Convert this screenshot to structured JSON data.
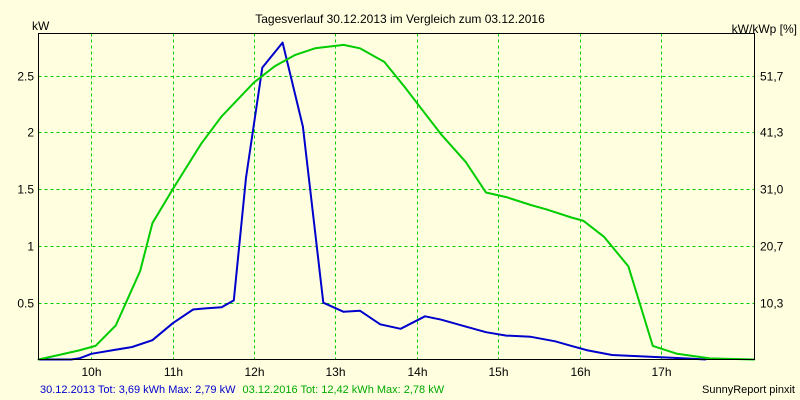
{
  "chart_data": {
    "type": "line",
    "title": "Tagesverlauf 30.12.2013 im Vergleich zum 03.12.2016",
    "ylabel_left": "kW",
    "ylabel_right": "kW/kWp [%]",
    "yticks_left": [
      "0.5",
      "1",
      "1.5",
      "2",
      "2.5"
    ],
    "yticks_right": [
      "10,3",
      "20,7",
      "31,0",
      "41,3",
      "51,7"
    ],
    "x_tick_labels": [
      "10h",
      "11h",
      "12h",
      "13h",
      "14h",
      "15h",
      "16h",
      "17h"
    ],
    "x_tick_hours": [
      10,
      11,
      12,
      13,
      14,
      15,
      16,
      17
    ],
    "xlim_hours": [
      9.35,
      18.15
    ],
    "ylim": [
      0,
      2.8
    ],
    "grid": true,
    "series": [
      {
        "name": "30.12.2013",
        "color": "#0000CC",
        "x": [
          9.35,
          9.6,
          9.75,
          9.85,
          10.0,
          10.25,
          10.5,
          10.75,
          11.0,
          11.25,
          11.4,
          11.6,
          11.75,
          11.9,
          12.1,
          12.35,
          12.6,
          12.85,
          13.1,
          13.3,
          13.55,
          13.8,
          14.1,
          14.3,
          14.6,
          14.85,
          15.1,
          15.4,
          15.7,
          15.9,
          16.1,
          16.4,
          16.7,
          17.0,
          17.3,
          17.55
        ],
        "y": [
          0,
          0,
          0,
          0.01,
          0.05,
          0.08,
          0.11,
          0.17,
          0.32,
          0.44,
          0.45,
          0.46,
          0.52,
          1.6,
          2.57,
          2.79,
          2.05,
          0.5,
          0.42,
          0.43,
          0.31,
          0.27,
          0.38,
          0.35,
          0.29,
          0.24,
          0.21,
          0.2,
          0.16,
          0.12,
          0.08,
          0.04,
          0.03,
          0.02,
          0.01,
          0
        ]
      },
      {
        "name": "03.12.2016",
        "color": "#00CC00",
        "x": [
          9.35,
          9.6,
          9.85,
          10.05,
          10.3,
          10.6,
          10.75,
          11.0,
          11.35,
          11.6,
          12.0,
          12.25,
          12.5,
          12.75,
          13.1,
          13.3,
          13.6,
          13.85,
          14.0,
          14.3,
          14.6,
          14.85,
          15.1,
          15.4,
          15.6,
          15.9,
          16.05,
          16.3,
          16.6,
          16.9,
          17.2,
          17.6,
          18.15
        ],
        "y": [
          0,
          0.04,
          0.08,
          0.12,
          0.3,
          0.78,
          1.2,
          1.5,
          1.9,
          2.14,
          2.44,
          2.58,
          2.68,
          2.74,
          2.77,
          2.74,
          2.62,
          2.4,
          2.26,
          1.98,
          1.74,
          1.47,
          1.43,
          1.36,
          1.32,
          1.25,
          1.22,
          1.08,
          0.82,
          0.12,
          0.05,
          0.01,
          0
        ]
      }
    ]
  },
  "footer": {
    "series1_summary": "30.12.2013 Tot: 3,69 kWh Max: 2,79 kW",
    "series2_summary": "03.12.2016 Tot: 12,42 kWh Max: 2,78 kW",
    "credit": "SunnyReport pinxit"
  },
  "colors": {
    "background": "#FFFFE0",
    "grid": "#00CC00",
    "series1": "#0000CC",
    "series2": "#00CC00"
  }
}
